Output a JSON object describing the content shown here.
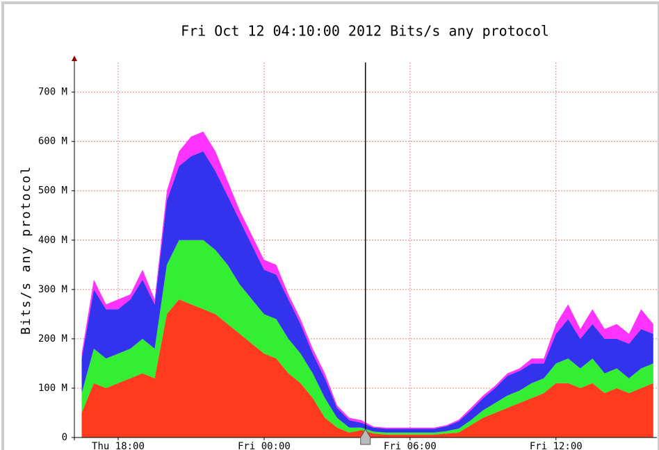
{
  "chart_data": {
    "type": "stacked_area",
    "title": "Fri Oct 12 04:10:00 2012 Bits/s any protocol",
    "y_label": "Bits/s any protocol",
    "x": [
      16.5,
      17,
      17.5,
      18,
      18.5,
      19,
      19.5,
      20,
      20.5,
      21,
      21.5,
      22,
      22.5,
      23,
      23.5,
      24,
      24.5,
      25,
      25.5,
      26,
      26.5,
      27,
      27.5,
      28,
      28.5,
      29,
      29.5,
      30,
      30.5,
      31,
      31.5,
      32,
      32.5,
      33,
      33.5,
      34,
      34.5,
      35,
      35.5,
      36,
      36.5,
      37,
      37.5,
      38,
      38.5,
      39,
      39.5,
      40
    ],
    "series": [
      {
        "color": "#ff3b1f",
        "values": [
          50,
          110,
          100,
          110,
          120,
          130,
          120,
          250,
          280,
          270,
          260,
          250,
          230,
          210,
          190,
          170,
          160,
          130,
          110,
          80,
          40,
          20,
          10,
          15,
          8,
          6,
          6,
          6,
          6,
          6,
          8,
          10,
          25,
          40,
          50,
          60,
          70,
          80,
          90,
          110,
          110,
          100,
          110,
          90,
          100,
          90,
          100,
          110
        ]
      },
      {
        "color": "#33ee33",
        "values": [
          40,
          70,
          60,
          60,
          60,
          70,
          60,
          100,
          120,
          130,
          140,
          130,
          120,
          100,
          90,
          80,
          80,
          70,
          60,
          50,
          40,
          20,
          10,
          5,
          4,
          4,
          4,
          4,
          4,
          4,
          5,
          8,
          10,
          15,
          20,
          25,
          25,
          30,
          30,
          40,
          50,
          40,
          50,
          40,
          40,
          30,
          40,
          40
        ]
      },
      {
        "color": "#3333ee",
        "values": [
          70,
          120,
          100,
          90,
          100,
          120,
          90,
          130,
          150,
          170,
          180,
          160,
          140,
          130,
          110,
          90,
          90,
          80,
          60,
          40,
          40,
          20,
          15,
          10,
          8,
          8,
          8,
          8,
          8,
          8,
          10,
          15,
          20,
          25,
          30,
          40,
          40,
          40,
          30,
          60,
          80,
          60,
          70,
          70,
          60,
          70,
          80,
          60
        ]
      },
      {
        "color": "#ff33ff",
        "values": [
          10,
          20,
          10,
          20,
          10,
          20,
          10,
          20,
          30,
          40,
          40,
          40,
          30,
          20,
          20,
          20,
          20,
          10,
          10,
          10,
          10,
          5,
          5,
          5,
          2,
          2,
          2,
          2,
          2,
          2,
          2,
          3,
          5,
          5,
          5,
          5,
          5,
          10,
          10,
          20,
          30,
          20,
          30,
          20,
          30,
          20,
          40,
          20
        ]
      }
    ],
    "xlim": [
      16.2,
      40.15
    ],
    "xticks": [
      {
        "value": 18,
        "label": "Thu 18:00"
      },
      {
        "value": 24,
        "label": "Fri 00:00"
      },
      {
        "value": 30,
        "label": "Fri 06:00"
      },
      {
        "value": 36,
        "label": "Fri 12:00"
      }
    ],
    "ylim": [
      0,
      760
    ],
    "yticks": [
      0,
      {
        "value": 100,
        "label": "100 M"
      },
      {
        "value": 200,
        "label": "200 M"
      },
      {
        "value": 300,
        "label": "300 M"
      },
      {
        "value": 400,
        "label": "400 M"
      },
      {
        "value": 500,
        "label": "500 M"
      },
      {
        "value": 600,
        "label": "600 M"
      },
      {
        "value": 700,
        "label": "700 M"
      }
    ],
    "cursor_x": 28.1667,
    "grid": true
  }
}
